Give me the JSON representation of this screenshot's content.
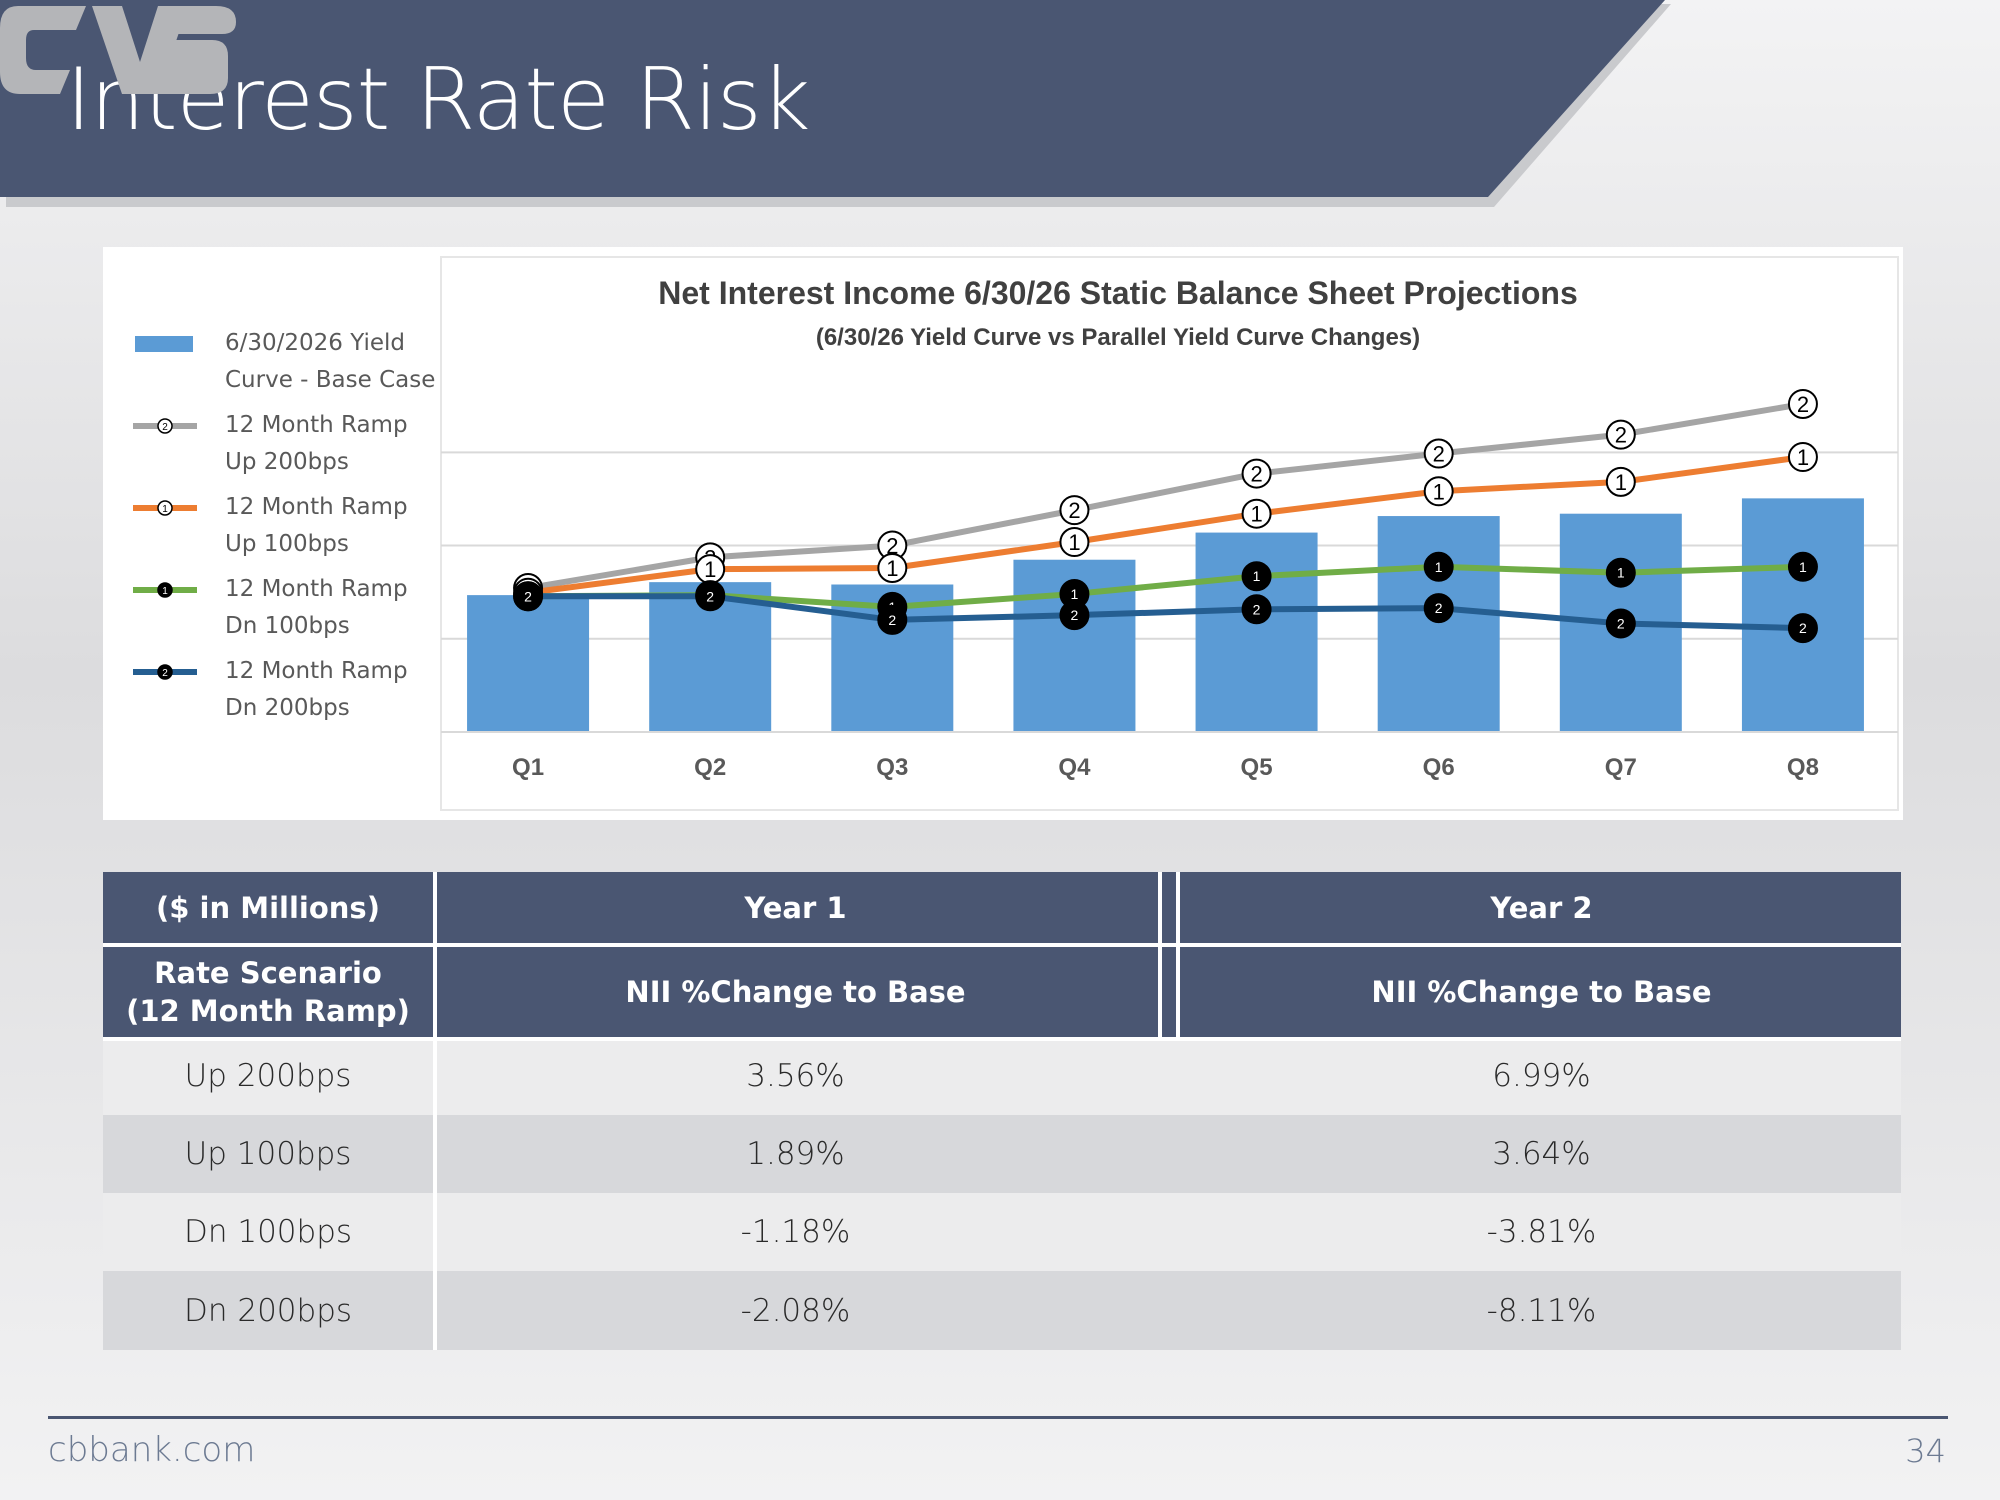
{
  "header": {
    "title": "Interest Rate Risk"
  },
  "footer": {
    "url": "cbbank.com",
    "page_number": "34"
  },
  "colors": {
    "header_bg": "#4a5672",
    "base_bar": "#5b9bd5",
    "up200": "#a5a5a5",
    "up100": "#ed7d31",
    "dn100": "#70ad47",
    "dn200": "#255e91"
  },
  "chart_data": {
    "type": "bar",
    "title": "Net Interest Income 6/30/26 Static Balance Sheet Projections",
    "subtitle": "(6/30/26 Yield Curve vs Parallel Yield Curve Changes)",
    "categories": [
      "Q1",
      "Q2",
      "Q3",
      "Q4",
      "Q5",
      "Q6",
      "Q7",
      "Q8"
    ],
    "grid": true,
    "legend_position": "left",
    "series": [
      {
        "name": "6/30/2026 Yield Curve - Base Case",
        "type": "bar",
        "color": "#5b9bd5",
        "marker": "",
        "values": [
          1.16,
          1.27,
          1.25,
          1.46,
          1.69,
          1.83,
          1.85,
          1.98
        ]
      },
      {
        "name": "12 Month Ramp Up 200bps",
        "type": "line",
        "color": "#a5a5a5",
        "marker": "2",
        "values": [
          1.22,
          1.48,
          1.58,
          1.88,
          2.19,
          2.36,
          2.52,
          2.78
        ]
      },
      {
        "name": "12 Month Ramp Up 100bps",
        "type": "line",
        "color": "#ed7d31",
        "marker": "1",
        "values": [
          1.18,
          1.38,
          1.39,
          1.61,
          1.85,
          2.04,
          2.12,
          2.33
        ]
      },
      {
        "name": "12 Month Ramp Dn 100bps",
        "type": "line",
        "color": "#70ad47",
        "marker": "1",
        "values": [
          1.15,
          1.16,
          1.06,
          1.17,
          1.32,
          1.4,
          1.35,
          1.4
        ]
      },
      {
        "name": "12 Month Ramp Dn 200bps",
        "type": "line",
        "color": "#255e91",
        "marker": "2",
        "values": [
          1.15,
          1.15,
          0.95,
          0.99,
          1.04,
          1.05,
          0.92,
          0.88
        ]
      }
    ],
    "legend_labels": [
      "6/30/2026 Yield\nCurve - Base Case",
      "12 Month Ramp\nUp 200bps",
      "12 Month Ramp\nUp 100bps",
      "12 Month Ramp\nDn 100bps",
      "12 Month Ramp\nDn 200bps"
    ]
  },
  "table": {
    "header_row1": [
      "($ in Millions)",
      "Year 1",
      "Year 2"
    ],
    "header_row2": [
      "Rate Scenario\n(12 Month Ramp)",
      "NII %Change to Base",
      "NII %Change to Base"
    ],
    "rows": [
      [
        "Up 200bps",
        "3.56%",
        "6.99%"
      ],
      [
        "Up 100bps",
        "1.89%",
        "3.64%"
      ],
      [
        "Dn 100bps",
        "-1.18%",
        "-3.81%"
      ],
      [
        "Dn 200bps",
        "-2.08%",
        "-8.11%"
      ]
    ],
    "row_colors": [
      "#ececed",
      "#d7d8db",
      "#ececed",
      "#d7d8db"
    ]
  }
}
